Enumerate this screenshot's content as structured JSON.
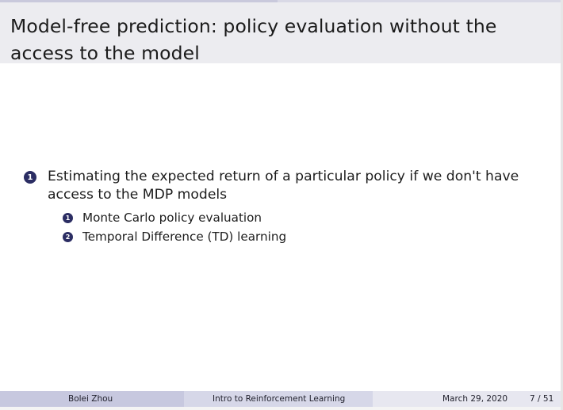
{
  "slide": {
    "title": "Model-free prediction: policy evaluation without the access to the model",
    "items": [
      {
        "number": "1",
        "text": "Estimating the expected return of a particular policy if we don't have access to the MDP models"
      },
      {
        "number": "1",
        "text": "Monte Carlo policy evaluation"
      },
      {
        "number": "2",
        "text": "Temporal Difference (TD) learning"
      }
    ]
  },
  "footer": {
    "author": "Bolei Zhou",
    "course": "Intro to Reinforcement Learning",
    "date": "March 29, 2020",
    "page": "7 / 51"
  },
  "watermark": {
    "icon": "bilibili-logo"
  },
  "colors": {
    "title_bar": "#ececf0",
    "bullet_fill": "#2b2d63",
    "footer_left": "#c7c8df",
    "footer_mid": "#d6d7e8",
    "footer_right": "#e7e7f0"
  }
}
